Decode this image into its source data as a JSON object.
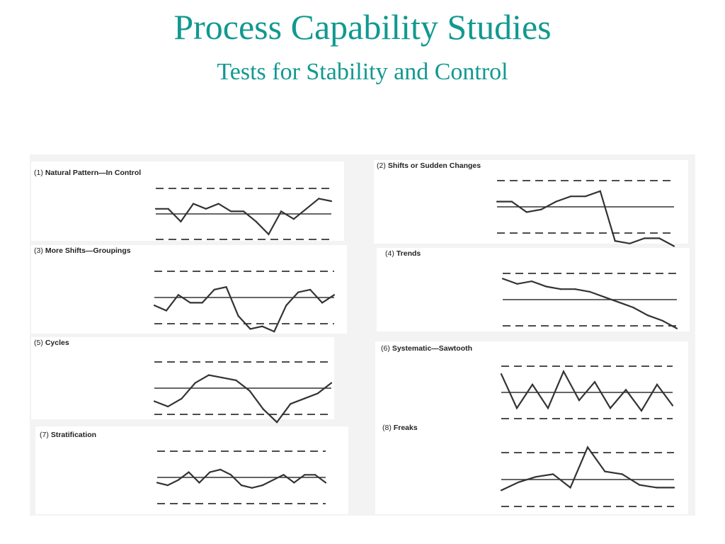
{
  "slide": {
    "title": "Process Capability Studies",
    "subtitle": "Tests for Stability and Control",
    "title_color": "#119990",
    "line_color": "#333333"
  },
  "chart_data": [
    {
      "type": "line",
      "number": "(1)",
      "title": "Natural Pattern—In Control",
      "center_line": 0,
      "control_limits": [
        1,
        -1
      ],
      "ylim": [
        -1.5,
        1.5
      ],
      "values": [
        0.2,
        0.2,
        -0.3,
        0.4,
        0.2,
        0.4,
        0.1,
        0.1,
        -0.3,
        -0.8,
        0.1,
        -0.2,
        0.2,
        0.6,
        0.5
      ]
    },
    {
      "type": "line",
      "number": "(2)",
      "title": "Shifts or Sudden Changes",
      "center_line": 0,
      "control_limits": [
        1,
        -1
      ],
      "ylim": [
        -1.5,
        1.5
      ],
      "values": [
        0.2,
        0.2,
        -0.2,
        -0.1,
        0.2,
        0.4,
        0.4,
        0.6,
        -1.3,
        -1.4,
        -1.2,
        -1.2,
        -1.5
      ]
    },
    {
      "type": "line",
      "number": "(3)",
      "title": "More Shifts—Groupings",
      "center_line": 0,
      "control_limits": [
        1,
        -1
      ],
      "ylim": [
        -1.5,
        1.5
      ],
      "values": [
        -0.3,
        -0.5,
        0.1,
        -0.2,
        -0.2,
        0.3,
        0.4,
        -0.7,
        -1.2,
        -1.1,
        -1.3,
        -0.3,
        0.2,
        0.3,
        -0.2,
        0.1
      ]
    },
    {
      "type": "line",
      "number": "(4)",
      "title": "Trends",
      "center_line": 0,
      "control_limits": [
        1,
        -1
      ],
      "ylim": [
        -1.5,
        1.5
      ],
      "values": [
        0.8,
        0.6,
        0.7,
        0.5,
        0.4,
        0.4,
        0.3,
        0.1,
        -0.1,
        -0.3,
        -0.6,
        -0.8,
        -1.1
      ]
    },
    {
      "type": "line",
      "number": "(5)",
      "title": "Cycles",
      "center_line": 0,
      "control_limits": [
        1,
        -1
      ],
      "ylim": [
        -1.5,
        1.5
      ],
      "values": [
        -0.5,
        -0.7,
        -0.4,
        0.2,
        0.5,
        0.4,
        0.3,
        -0.1,
        -0.8,
        -1.3,
        -0.6,
        -0.4,
        -0.2,
        0.2
      ]
    },
    {
      "type": "line",
      "number": "(6)",
      "title": "Systematic—Sawtooth",
      "center_line": 0,
      "control_limits": [
        1,
        -1
      ],
      "ylim": [
        -1.5,
        1.5
      ],
      "values": [
        0.7,
        -0.6,
        0.3,
        -0.6,
        0.8,
        -0.3,
        0.4,
        -0.6,
        0.1,
        -0.7,
        0.3,
        -0.5
      ]
    },
    {
      "type": "line",
      "number": "(7)",
      "title": "Stratification",
      "center_line": 0,
      "control_limits": [
        1,
        -1
      ],
      "ylim": [
        -1.5,
        1.5
      ],
      "values": [
        -0.2,
        -0.3,
        -0.1,
        0.2,
        -0.2,
        0.2,
        0.3,
        0.1,
        -0.3,
        -0.4,
        -0.3,
        -0.1,
        0.1,
        -0.2,
        0.1,
        0.1,
        -0.2
      ]
    },
    {
      "type": "line",
      "number": "(8)",
      "title": "Freaks",
      "center_line": 0,
      "control_limits": [
        1,
        -1
      ],
      "ylim": [
        -1.5,
        1.5
      ],
      "values": [
        -0.4,
        -0.1,
        0.1,
        0.2,
        -0.3,
        1.2,
        0.3,
        0.2,
        -0.2,
        -0.3,
        -0.3
      ]
    }
  ]
}
